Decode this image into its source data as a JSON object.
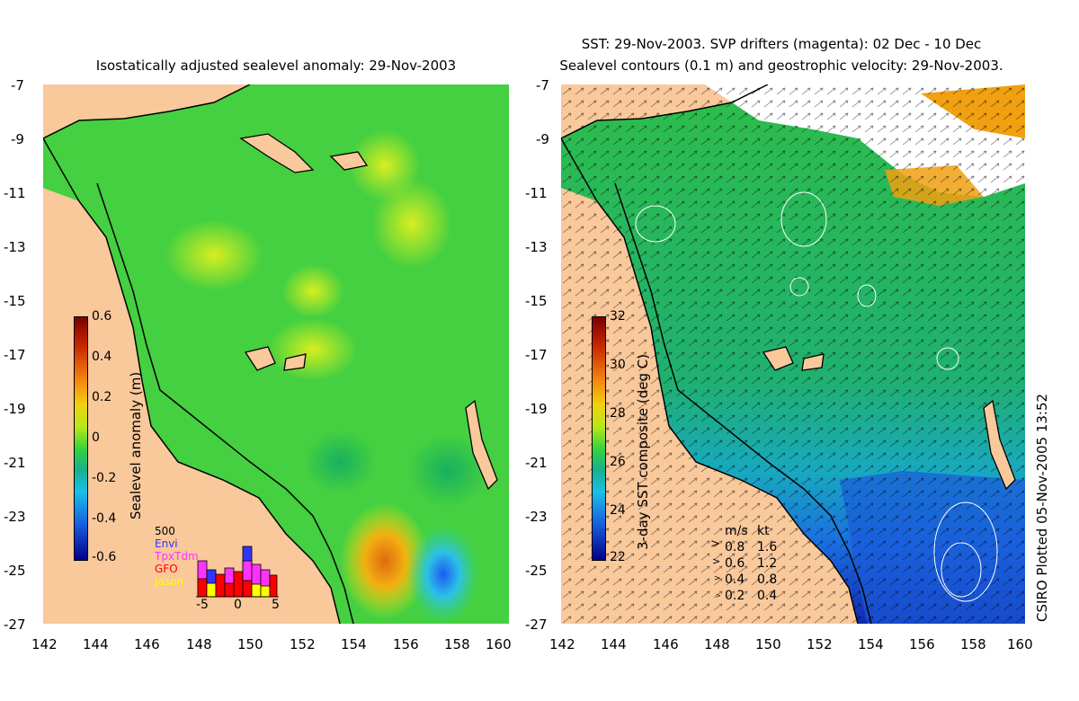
{
  "left_panel": {
    "title": "Isostatically adjusted sealevel anomaly: 29-Nov-2003",
    "colorbar": {
      "label": "Sealevel anomaly (m)",
      "ticks": [
        "0.6",
        "0.4",
        "0.2",
        "0",
        "-0.2",
        "-0.4",
        "-0.6"
      ]
    },
    "histogram": {
      "count_label": "500",
      "series": [
        {
          "name": "Envi",
          "color": "#3333ff"
        },
        {
          "name": "TpxTdm",
          "color": "#ff33ff"
        },
        {
          "name": "GFO",
          "color": "#ff0000"
        },
        {
          "name": "Jason",
          "color": "#ffff00"
        }
      ],
      "x_ticks": [
        "-5",
        "0",
        "5"
      ]
    }
  },
  "right_panel": {
    "title_line1": "SST: 29-Nov-2003. SVP drifters (magenta): 02 Dec - 10 Dec",
    "title_line2": "Sealevel contours (0.1 m) and geostrophic velocity: 29-Nov-2003.",
    "colorbar": {
      "label": "3-day SST composite (deg C)",
      "ticks": [
        "32",
        "30",
        "28",
        "26",
        "24",
        "22"
      ]
    },
    "speed_legend": {
      "header_ms": "m/s",
      "header_kt": "kt",
      "rows": [
        {
          "ms": "0.8",
          "kt": "1.6"
        },
        {
          "ms": "0.6",
          "kt": "1.2"
        },
        {
          "ms": "0.4",
          "kt": "0.8"
        },
        {
          "ms": "0.2",
          "kt": "0.4"
        }
      ]
    }
  },
  "axes": {
    "y_ticks": [
      "-7",
      "-9",
      "-11",
      "-13",
      "-15",
      "-17",
      "-19",
      "-21",
      "-23",
      "-25",
      "-27"
    ],
    "x_ticks": [
      "142",
      "144",
      "146",
      "148",
      "150",
      "152",
      "154",
      "156",
      "158",
      "160"
    ]
  },
  "credit": "CSIRO Plotted 05-Nov-2005 13:52",
  "colors": {
    "land": "#f9c89b",
    "sla_green": "#38d13a",
    "sst_green": "#2cc04a",
    "sst_blue": "#1a7fe0"
  }
}
